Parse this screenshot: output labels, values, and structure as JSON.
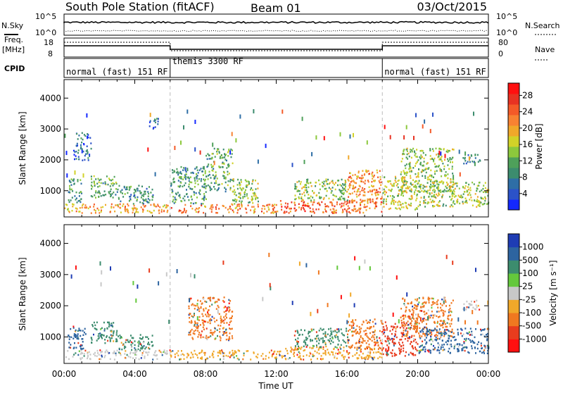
{
  "header": {
    "station": "South Pole Station (fitACF)",
    "beam": "Beam 01",
    "date": "03/Oct/2015"
  },
  "strip_labels": {
    "nsky": "N.Sky",
    "freq": "Freq.",
    "mhz": "[MHz]",
    "cpid": "CPID",
    "nsearch": "N.Search",
    "nave": "Nave",
    "nsky_top": "10^5",
    "nsky_bottom": "10^0",
    "nsearch_top": "10^5",
    "nsearch_bottom": "10^0",
    "freq_top": "18",
    "freq_bottom": "8",
    "nave_top": "80",
    "nave_bottom": "0"
  },
  "cpid_segments": [
    {
      "label": "normal (fast) 151 RF",
      "start_hour": 0,
      "end_hour": 6
    },
    {
      "label": "themis 3300 RF",
      "start_hour": 6,
      "end_hour": 18
    },
    {
      "label": "normal (fast) 151 RF",
      "start_hour": 18,
      "end_hour": 24
    }
  ],
  "chart_data": [
    {
      "type": "heatmap",
      "name": "power",
      "ylabel": "Slant Range [km]",
      "xlabel": "Time UT",
      "xlim": [
        0,
        24
      ],
      "ylim": [
        150,
        4600
      ],
      "x_ticks": [
        "00:00",
        "04:00",
        "08:00",
        "12:00",
        "16:00",
        "20:00",
        "00:00"
      ],
      "y_ticks": [
        1000,
        2000,
        3000,
        4000
      ],
      "colorbar": {
        "label": "Power [dB]",
        "ticks": [
          4,
          8,
          12,
          16,
          20,
          24,
          28
        ],
        "range": [
          0,
          31
        ],
        "colors": [
          "#1428ff",
          "#2b52c8",
          "#2e6ea6",
          "#3c8c6e",
          "#4ea05a",
          "#8cc83c",
          "#d2d228",
          "#f0a82a",
          "#f88232",
          "#f45a28",
          "#e83222",
          "#ff1010"
        ]
      },
      "bands": [
        {
          "t": [
            0,
            6
          ],
          "r": [
            300,
            600
          ],
          "value": 20
        },
        {
          "t": [
            0.2,
            1.0
          ],
          "r": [
            600,
            1400
          ],
          "value": 10
        },
        {
          "t": [
            0.5,
            1.5
          ],
          "r": [
            2000,
            2900
          ],
          "value": 6
        },
        {
          "t": [
            1.5,
            3.0
          ],
          "r": [
            800,
            1500
          ],
          "value": 12
        },
        {
          "t": [
            3.0,
            5.0
          ],
          "r": [
            600,
            1200
          ],
          "value": 9
        },
        {
          "t": [
            4.8,
            5.3
          ],
          "r": [
            3000,
            3400
          ],
          "value": 6
        },
        {
          "t": [
            6,
            12
          ],
          "r": [
            300,
            600
          ],
          "value": 22
        },
        {
          "t": [
            6,
            8
          ],
          "r": [
            600,
            1800
          ],
          "value": 10
        },
        {
          "t": [
            8.0,
            9.5
          ],
          "r": [
            1000,
            2400
          ],
          "value": 12
        },
        {
          "t": [
            9.5,
            11
          ],
          "r": [
            600,
            1400
          ],
          "value": 14
        },
        {
          "t": [
            12,
            18
          ],
          "r": [
            300,
            700
          ],
          "value": 24
        },
        {
          "t": [
            13,
            16
          ],
          "r": [
            700,
            1400
          ],
          "value": 14
        },
        {
          "t": [
            16,
            18
          ],
          "r": [
            600,
            1700
          ],
          "value": 22
        },
        {
          "t": [
            18,
            20
          ],
          "r": [
            400,
            1500
          ],
          "value": 16
        },
        {
          "t": [
            19,
            22
          ],
          "r": [
            1000,
            2400
          ],
          "value": 14
        },
        {
          "t": [
            20,
            24
          ],
          "r": [
            500,
            1300
          ],
          "value": 15
        },
        {
          "t": [
            22.5,
            23.5
          ],
          "r": [
            1900,
            2200
          ],
          "value": 8
        }
      ]
    },
    {
      "type": "heatmap",
      "name": "velocity",
      "ylabel": "Slant Range [km]",
      "xlabel": "Time UT",
      "xlim": [
        0,
        24
      ],
      "ylim": [
        150,
        4600
      ],
      "x_ticks": [
        "00:00",
        "04:00",
        "08:00",
        "12:00",
        "16:00",
        "20:00",
        "00:00"
      ],
      "y_ticks": [
        1000,
        2000,
        3000,
        4000
      ],
      "colorbar": {
        "label": "Velocity [m s^-1]",
        "ticks": [
          "1000",
          "500",
          "100",
          "25",
          "-25",
          "-100",
          "-500",
          "-1000"
        ],
        "colors": [
          "#1e3cb4",
          "#2d64a0",
          "#3c8c6e",
          "#64c83c",
          "#c8c8c8",
          "#f0a82a",
          "#f07820",
          "#e83c1e",
          "#ff1010"
        ]
      },
      "bands": [
        {
          "t": [
            0,
            6
          ],
          "r": [
            300,
            600
          ],
          "value": "#c8c8c8"
        },
        {
          "t": [
            0.2,
            1.2
          ],
          "r": [
            600,
            1400
          ],
          "value": "#2d64a0"
        },
        {
          "t": [
            1.5,
            3.0
          ],
          "r": [
            800,
            1500
          ],
          "value": "#3c8c6e"
        },
        {
          "t": [
            3.0,
            5.0
          ],
          "r": [
            600,
            1100
          ],
          "value": "#3c8c6e"
        },
        {
          "t": [
            6,
            12
          ],
          "r": [
            300,
            600
          ],
          "value": "#f0a82a"
        },
        {
          "t": [
            7,
            9.5
          ],
          "r": [
            900,
            2300
          ],
          "value": "#f07820"
        },
        {
          "t": [
            12,
            18
          ],
          "r": [
            300,
            700
          ],
          "value": "#f0a82a"
        },
        {
          "t": [
            13,
            16
          ],
          "r": [
            700,
            1300
          ],
          "value": "#3c8c6e"
        },
        {
          "t": [
            16,
            18
          ],
          "r": [
            600,
            1600
          ],
          "value": "#f07820"
        },
        {
          "t": [
            18,
            20
          ],
          "r": [
            400,
            1500
          ],
          "value": "#e83c1e"
        },
        {
          "t": [
            19,
            22
          ],
          "r": [
            1000,
            2300
          ],
          "value": "#f07820"
        },
        {
          "t": [
            20,
            24
          ],
          "r": [
            500,
            1300
          ],
          "value": "#2d64a0"
        },
        {
          "t": [
            22.5,
            23.5
          ],
          "r": [
            1900,
            2200
          ],
          "value": "#c8c8c8"
        }
      ]
    }
  ]
}
